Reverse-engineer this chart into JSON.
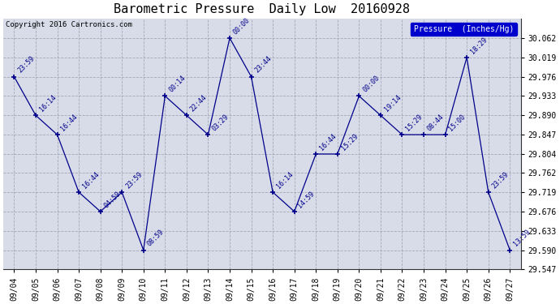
{
  "title": "Barometric Pressure  Daily Low  20160928",
  "copyright": "Copyright 2016 Cartronics.com",
  "legend_label": "Pressure  (Inches/Hg)",
  "x_labels": [
    "09/04",
    "09/05",
    "09/06",
    "09/07",
    "09/08",
    "09/09",
    "09/10",
    "09/11",
    "09/12",
    "09/13",
    "09/14",
    "09/15",
    "09/16",
    "09/17",
    "09/18",
    "09/19",
    "09/20",
    "09/21",
    "09/22",
    "09/23",
    "09/24",
    "09/25",
    "09/26",
    "09/27"
  ],
  "y_values": [
    29.976,
    29.89,
    29.847,
    29.719,
    29.676,
    29.719,
    29.59,
    29.933,
    29.89,
    29.847,
    30.062,
    29.976,
    29.719,
    29.676,
    29.804,
    29.804,
    29.933,
    29.89,
    29.847,
    29.847,
    29.847,
    30.019,
    29.719,
    29.59
  ],
  "time_labels": [
    "23:59",
    "16:14",
    "16:44",
    "16:44",
    "04:59",
    "23:59",
    "08:59",
    "00:14",
    "22:44",
    "03:29",
    "00:00",
    "23:44",
    "16:14",
    "14:59",
    "16:44",
    "15:29",
    "00:00",
    "19:14",
    "15:29",
    "08:44",
    "15:00",
    "18:29",
    "23:59",
    "13:59"
  ],
  "ylim_min": 29.547,
  "ylim_max": 30.105,
  "yticks": [
    29.547,
    29.59,
    29.633,
    29.676,
    29.719,
    29.762,
    29.804,
    29.847,
    29.89,
    29.933,
    29.976,
    30.019,
    30.062
  ],
  "line_color": "#00008B",
  "bg_color": "#FFFFFF",
  "plot_bg_color": "#D8DCE8",
  "grid_color": "#9999AA",
  "outer_bg": "#FFFFFF",
  "title_fontsize": 11,
  "tick_fontsize": 7,
  "annot_fontsize": 6,
  "legend_bg": "#0000CC",
  "legend_fg": "#FFFFFF"
}
